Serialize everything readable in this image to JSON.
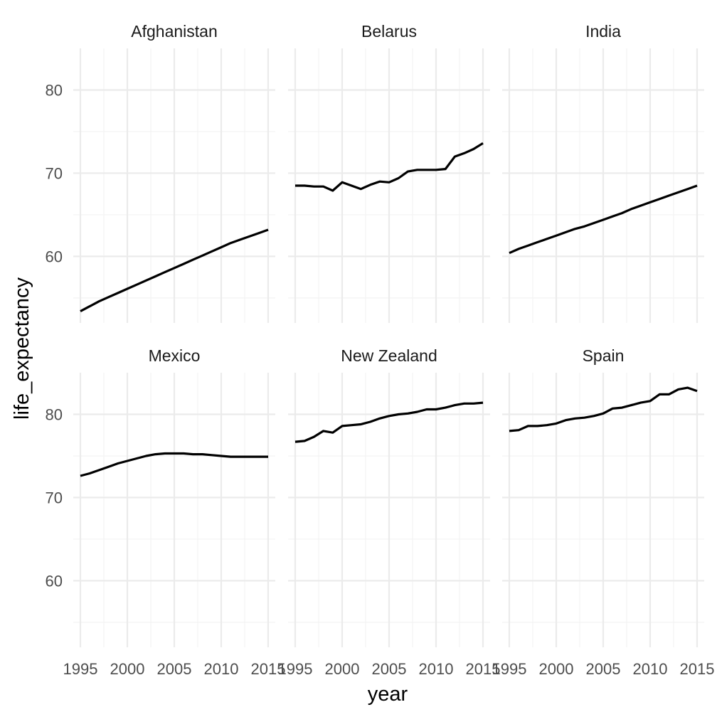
{
  "chart_data": {
    "type": "line",
    "layout": "facet_wrap",
    "facet_columns": 3,
    "xlabel": "year",
    "ylabel": "life_expectancy",
    "xlim": [
      1995,
      2015
    ],
    "ylim": [
      52,
      85
    ],
    "x_ticks": [
      1995,
      2000,
      2005,
      2010,
      2015
    ],
    "x_tick_labels": [
      "1995",
      "2000",
      "2005",
      "2010",
      "2015"
    ],
    "y_ticks": [
      60,
      70,
      80
    ],
    "y_tick_labels": [
      "60",
      "70",
      "80"
    ],
    "grid": true,
    "legend": "none",
    "line_color": "#000000",
    "x": [
      1995,
      1996,
      1997,
      1998,
      1999,
      2000,
      2001,
      2002,
      2003,
      2004,
      2005,
      2006,
      2007,
      2008,
      2009,
      2010,
      2011,
      2012,
      2013,
      2014,
      2015
    ],
    "panels": [
      {
        "title": "Afghanistan",
        "values": [
          53.4,
          54.0,
          54.6,
          55.1,
          55.6,
          56.1,
          56.6,
          57.1,
          57.6,
          58.1,
          58.6,
          59.1,
          59.6,
          60.1,
          60.6,
          61.1,
          61.6,
          62.0,
          62.4,
          62.8,
          63.2
        ]
      },
      {
        "title": "Belarus",
        "values": [
          68.5,
          68.5,
          68.4,
          68.4,
          67.9,
          68.9,
          68.5,
          68.1,
          68.6,
          69.0,
          68.9,
          69.4,
          70.2,
          70.4,
          70.4,
          70.4,
          70.5,
          72.0,
          72.4,
          72.9,
          73.6
        ]
      },
      {
        "title": "India",
        "values": [
          60.4,
          60.9,
          61.3,
          61.7,
          62.1,
          62.5,
          62.9,
          63.3,
          63.6,
          64.0,
          64.4,
          64.8,
          65.2,
          65.7,
          66.1,
          66.5,
          66.9,
          67.3,
          67.7,
          68.1,
          68.5
        ]
      },
      {
        "title": "Mexico",
        "values": [
          72.6,
          72.9,
          73.3,
          73.7,
          74.1,
          74.4,
          74.7,
          75.0,
          75.2,
          75.3,
          75.3,
          75.3,
          75.2,
          75.2,
          75.1,
          75.0,
          74.9,
          74.9,
          74.9,
          74.9,
          74.9
        ]
      },
      {
        "title": "New Zealand",
        "values": [
          76.7,
          76.8,
          77.3,
          78.0,
          77.8,
          78.6,
          78.7,
          78.8,
          79.1,
          79.5,
          79.8,
          80.0,
          80.1,
          80.3,
          80.6,
          80.6,
          80.8,
          81.1,
          81.3,
          81.3,
          81.4
        ]
      },
      {
        "title": "Spain",
        "values": [
          78.0,
          78.1,
          78.6,
          78.6,
          78.7,
          78.9,
          79.3,
          79.5,
          79.6,
          79.8,
          80.1,
          80.7,
          80.8,
          81.1,
          81.4,
          81.6,
          82.4,
          82.4,
          83.0,
          83.2,
          82.8
        ]
      }
    ]
  }
}
